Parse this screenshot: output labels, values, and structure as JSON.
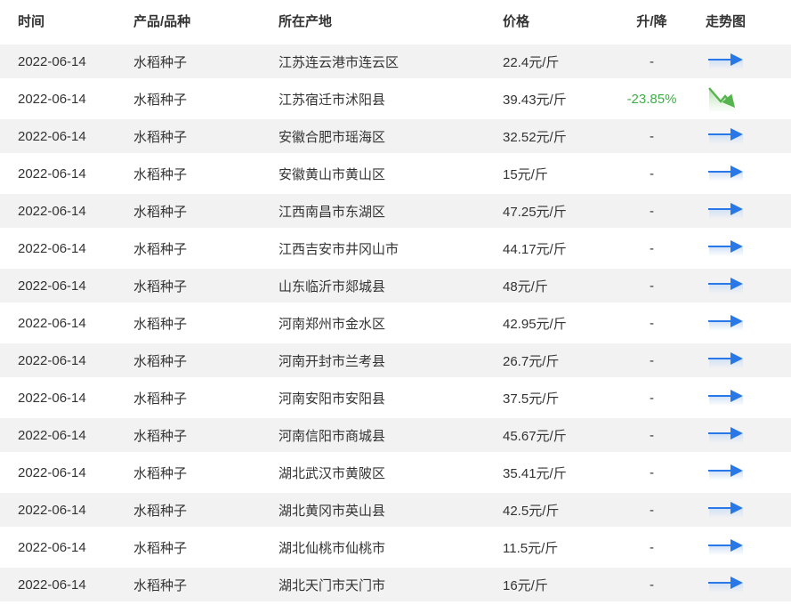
{
  "table": {
    "columns": [
      {
        "key": "time",
        "label": "时间"
      },
      {
        "key": "product",
        "label": "产品/品种"
      },
      {
        "key": "origin",
        "label": "所在产地"
      },
      {
        "key": "price",
        "label": "价格"
      },
      {
        "key": "change",
        "label": "升/降"
      },
      {
        "key": "trend",
        "label": "走势图"
      }
    ],
    "rows": [
      {
        "time": "2022-06-14",
        "product": "水稻种子",
        "origin": "江苏连云港市连云区",
        "price": "22.4元/斤",
        "change": "-",
        "trend": "flat"
      },
      {
        "time": "2022-06-14",
        "product": "水稻种子",
        "origin": "江苏宿迁市沭阳县",
        "price": "39.43元/斤",
        "change": "-23.85%",
        "trend": "down"
      },
      {
        "time": "2022-06-14",
        "product": "水稻种子",
        "origin": "安徽合肥市瑶海区",
        "price": "32.52元/斤",
        "change": "-",
        "trend": "flat"
      },
      {
        "time": "2022-06-14",
        "product": "水稻种子",
        "origin": "安徽黄山市黄山区",
        "price": "15元/斤",
        "change": "-",
        "trend": "flat"
      },
      {
        "time": "2022-06-14",
        "product": "水稻种子",
        "origin": "江西南昌市东湖区",
        "price": "47.25元/斤",
        "change": "-",
        "trend": "flat"
      },
      {
        "time": "2022-06-14",
        "product": "水稻种子",
        "origin": "江西吉安市井冈山市",
        "price": "44.17元/斤",
        "change": "-",
        "trend": "flat"
      },
      {
        "time": "2022-06-14",
        "product": "水稻种子",
        "origin": "山东临沂市郯城县",
        "price": "48元/斤",
        "change": "-",
        "trend": "flat"
      },
      {
        "time": "2022-06-14",
        "product": "水稻种子",
        "origin": "河南郑州市金水区",
        "price": "42.95元/斤",
        "change": "-",
        "trend": "flat"
      },
      {
        "time": "2022-06-14",
        "product": "水稻种子",
        "origin": "河南开封市兰考县",
        "price": "26.7元/斤",
        "change": "-",
        "trend": "flat"
      },
      {
        "time": "2022-06-14",
        "product": "水稻种子",
        "origin": "河南安阳市安阳县",
        "price": "37.5元/斤",
        "change": "-",
        "trend": "flat"
      },
      {
        "time": "2022-06-14",
        "product": "水稻种子",
        "origin": "河南信阳市商城县",
        "price": "45.67元/斤",
        "change": "-",
        "trend": "flat"
      },
      {
        "time": "2022-06-14",
        "product": "水稻种子",
        "origin": "湖北武汉市黄陂区",
        "price": "35.41元/斤",
        "change": "-",
        "trend": "flat"
      },
      {
        "time": "2022-06-14",
        "product": "水稻种子",
        "origin": "湖北黄冈市英山县",
        "price": "42.5元/斤",
        "change": "-",
        "trend": "flat"
      },
      {
        "time": "2022-06-14",
        "product": "水稻种子",
        "origin": "湖北仙桃市仙桃市",
        "price": "11.5元/斤",
        "change": "-",
        "trend": "flat"
      },
      {
        "time": "2022-06-14",
        "product": "水稻种子",
        "origin": "湖北天门市天门市",
        "price": "16元/斤",
        "change": "-",
        "trend": "flat"
      }
    ]
  },
  "icons": {
    "flat": "flat-trend-arrow-icon",
    "down": "down-trend-arrow-icon"
  },
  "colors": {
    "text": "#333333",
    "row_alt_bg": "#f2f2f2",
    "change_down_green": "#3fae49",
    "trend_flat_blue": "#2878e8",
    "trend_flat_shadow": "#cfe0f7",
    "trend_down_green": "#56b44e",
    "trend_down_fill": "#cdeac4"
  }
}
